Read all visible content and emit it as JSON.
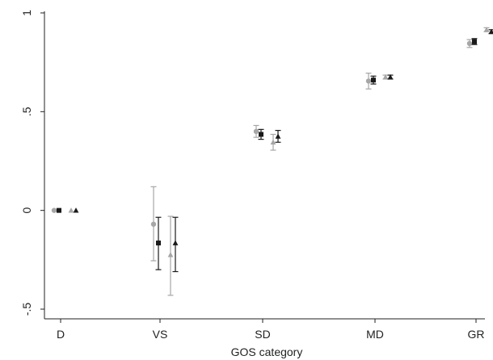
{
  "chart_data": {
    "type": "scatter",
    "title": "",
    "xlabel": "GOS category",
    "ylabel": "",
    "categories": [
      "D",
      "VS",
      "SD",
      "MD",
      "GR"
    ],
    "ylim": [
      -0.5,
      1
    ],
    "yticks": [
      {
        "value": 1,
        "label": "1"
      },
      {
        "value": 0.5,
        "label": ".5"
      },
      {
        "value": 0,
        "label": "0"
      },
      {
        "value": -0.5,
        "label": "-.5"
      }
    ],
    "grid": false,
    "legend": "none",
    "series": [
      {
        "marker": "circle",
        "color": "#a6a6a6",
        "values": [
          0,
          -0.07,
          0.4,
          0.655,
          0.845
        ],
        "ci_low": [
          0,
          -0.255,
          0.37,
          0.615,
          0.825
        ],
        "ci_high": [
          0,
          0.12,
          0.43,
          0.695,
          0.865
        ]
      },
      {
        "marker": "square",
        "color": "#1a1a1a",
        "values": [
          0,
          -0.165,
          0.385,
          0.66,
          0.855
        ],
        "ci_low": [
          0,
          -0.3,
          0.36,
          0.64,
          0.84
        ],
        "ci_high": [
          0,
          -0.035,
          0.41,
          0.68,
          0.87
        ]
      },
      {
        "marker": "triangle",
        "color": "#a6a6a6",
        "values": [
          0,
          -0.225,
          0.345,
          0.675,
          0.915
        ],
        "ci_low": [
          0,
          -0.43,
          0.305,
          0.665,
          0.905
        ],
        "ci_high": [
          0,
          -0.03,
          0.385,
          0.685,
          0.925
        ]
      },
      {
        "marker": "triangle",
        "color": "#1a1a1a",
        "values": [
          0,
          -0.165,
          0.375,
          0.675,
          0.905
        ],
        "ci_low": [
          0,
          -0.31,
          0.345,
          0.665,
          0.895
        ],
        "ci_high": [
          0,
          -0.035,
          0.405,
          0.685,
          0.915
        ]
      }
    ]
  }
}
